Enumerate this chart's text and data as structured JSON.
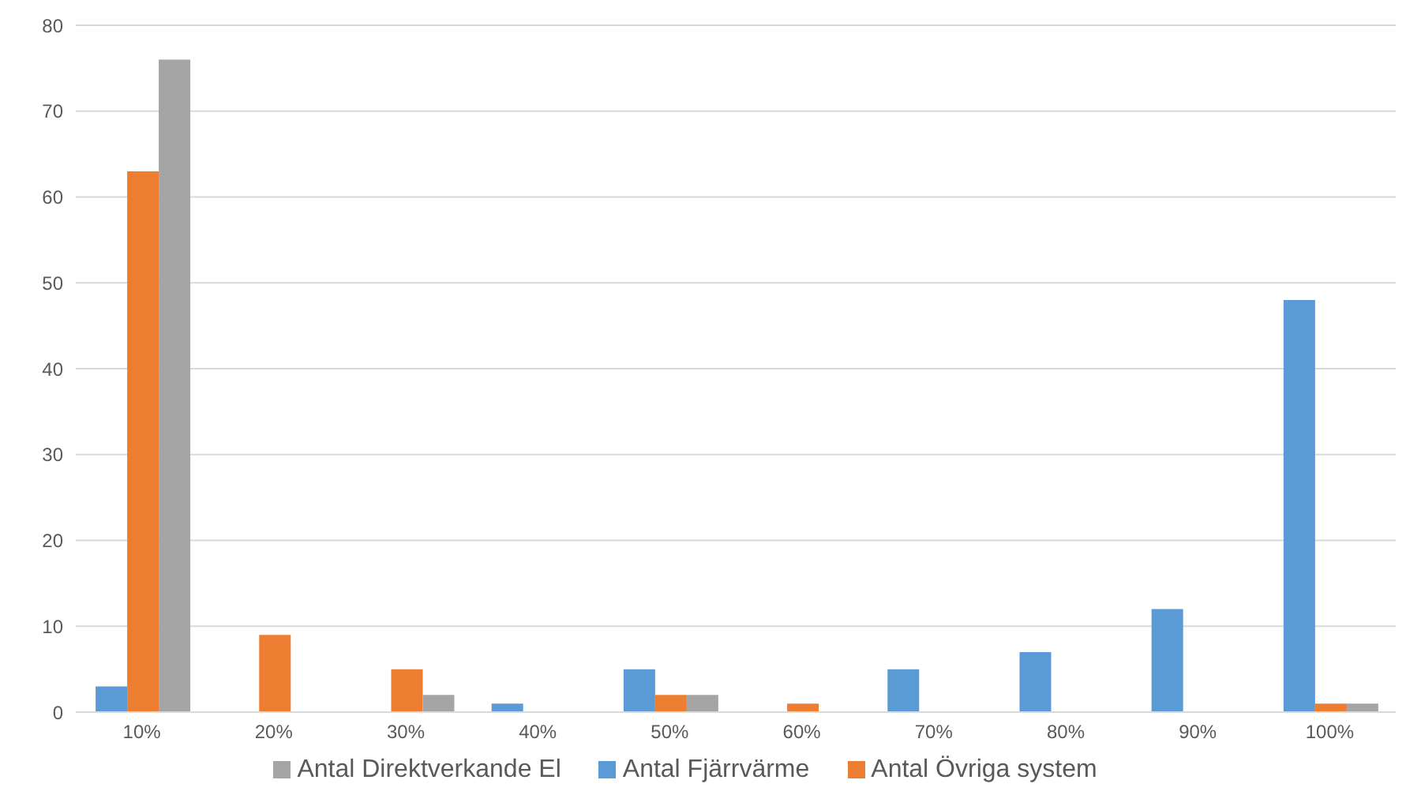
{
  "chart_data": {
    "type": "bar",
    "categories": [
      "10%",
      "20%",
      "30%",
      "40%",
      "50%",
      "60%",
      "70%",
      "80%",
      "90%",
      "100%"
    ],
    "series": [
      {
        "name": "Antal Fjärrvärme",
        "color": "#5b9bd5",
        "values": [
          3,
          0,
          0,
          1,
          5,
          0,
          5,
          7,
          12,
          48
        ]
      },
      {
        "name": "Antal Övriga system",
        "color": "#ed7d31",
        "values": [
          63,
          9,
          5,
          0,
          2,
          1,
          0,
          0,
          0,
          1
        ]
      },
      {
        "name": "Antal Direktverkande El",
        "color": "#a5a5a5",
        "values": [
          76,
          0,
          2,
          0,
          2,
          0,
          0,
          0,
          0,
          1
        ]
      }
    ],
    "ylim": [
      0,
      80
    ],
    "yticks": [
      0,
      10,
      20,
      30,
      40,
      50,
      60,
      70,
      80
    ],
    "grid": "y",
    "legend": "bottom"
  }
}
